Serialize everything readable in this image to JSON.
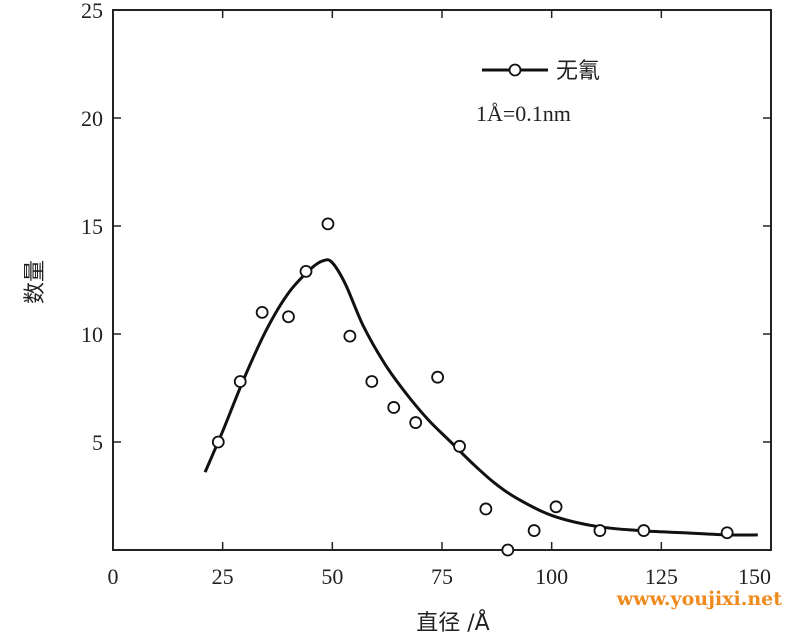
{
  "chart_data": {
    "type": "scatter",
    "xlabel": "直径 /Å",
    "ylabel": "数量",
    "xlim": [
      0,
      150
    ],
    "ylim": [
      0,
      25
    ],
    "xticks": [
      0,
      25,
      50,
      75,
      100,
      125,
      150
    ],
    "yticks": [
      5,
      10,
      15,
      20,
      25
    ],
    "grid": false,
    "legend_position": "top-right",
    "series": [
      {
        "name": "无氰",
        "points": {
          "x": [
            24,
            29,
            34,
            40,
            44,
            49,
            54,
            59,
            64,
            69,
            74,
            79,
            85,
            90,
            96,
            101,
            111,
            121,
            140
          ],
          "y": [
            5.0,
            7.8,
            11.0,
            10.8,
            12.9,
            15.1,
            9.9,
            7.8,
            6.6,
            5.9,
            8.0,
            4.8,
            1.9,
            0.0,
            0.9,
            2.0,
            0.9,
            0.9,
            0.8
          ]
        },
        "curve": {
          "x": [
            21,
            25,
            30,
            35,
            40,
            45,
            48,
            50,
            53,
            57,
            62,
            67,
            72,
            77,
            82,
            87,
            92,
            100,
            110,
            120,
            130,
            140,
            147
          ],
          "y": [
            3.6,
            5.5,
            8.0,
            10.2,
            11.9,
            13.0,
            13.4,
            13.3,
            12.3,
            10.4,
            8.6,
            7.2,
            6.0,
            5.0,
            4.0,
            3.1,
            2.4,
            1.6,
            1.1,
            0.9,
            0.8,
            0.7,
            0.7
          ]
        }
      }
    ],
    "annotations": [
      "1Å=0.1nm"
    ]
  },
  "watermark": "www.youjixi.net"
}
